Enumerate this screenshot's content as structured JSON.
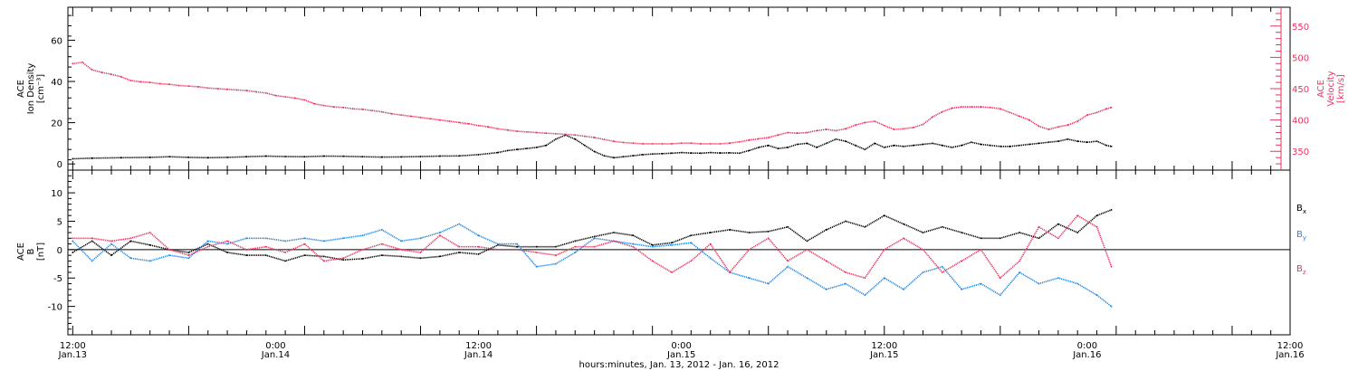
{
  "chart_data": [
    {
      "type": "line",
      "panel": "density_velocity",
      "ylabel_lines": [
        "ACE",
        "Ion Density",
        "[cm⁻³]"
      ],
      "y2label_lines": [
        "ACE",
        "Velocity",
        "[km/s]"
      ],
      "ylim": [
        -3,
        76
      ],
      "yticks": [
        0,
        20,
        40,
        60
      ],
      "y2lim": [
        320,
        580
      ],
      "y2ticks": [
        350,
        400,
        450,
        500,
        550
      ],
      "y2_color": "#e8345f",
      "series": [
        {
          "axis": "y",
          "color": "#000000",
          "x": [
            0,
            2,
            5,
            8,
            10,
            12,
            14,
            16,
            18,
            20,
            22,
            24,
            26,
            28,
            30,
            32,
            34,
            36,
            38,
            40,
            42,
            44,
            45,
            46,
            47,
            48,
            49,
            50,
            51,
            52,
            53,
            54,
            55,
            56,
            57,
            58,
            59,
            60,
            61,
            62,
            63,
            64,
            65,
            66,
            67,
            68,
            69,
            70,
            71,
            72,
            73,
            74,
            75,
            76,
            77,
            78,
            79,
            80,
            81,
            82,
            83,
            84,
            85,
            86,
            87,
            88,
            89,
            90,
            91,
            92,
            93,
            94,
            95,
            96,
            97,
            98,
            99,
            100,
            101,
            102,
            103,
            104,
            105,
            106,
            107,
            107.5
          ],
          "y": [
            2.5,
            2.8,
            3,
            3.2,
            3.5,
            3.2,
            3,
            3.2,
            3.5,
            3.8,
            3.6,
            3.5,
            3.8,
            3.7,
            3.5,
            3.3,
            3.4,
            3.6,
            3.8,
            3.9,
            4.5,
            5.5,
            6.5,
            7,
            7.5,
            8,
            9,
            12,
            14,
            12,
            9,
            6,
            4,
            3,
            3.5,
            4,
            4.5,
            4.8,
            5,
            5.2,
            5.5,
            5.3,
            5.2,
            5.5,
            5.3,
            5.4,
            5.2,
            6.5,
            8,
            9,
            7.5,
            8,
            9.5,
            10,
            8,
            10,
            12,
            11,
            9,
            7,
            10,
            8,
            9,
            8.5,
            9,
            9.5,
            10,
            9,
            8,
            9,
            10.5,
            9.5,
            9,
            8.5,
            8.5,
            9,
            9.5,
            10,
            10.5,
            11,
            12,
            11,
            10.5,
            11,
            9,
            8.5
          ]
        },
        {
          "axis": "y2",
          "color": "#e8345f",
          "x": [
            0,
            1,
            2,
            3,
            4,
            5,
            6,
            7,
            8,
            9,
            10,
            11,
            12,
            13,
            14,
            15,
            16,
            17,
            18,
            19,
            20,
            21,
            22,
            23,
            24,
            25,
            26,
            27,
            28,
            29,
            30,
            31,
            32,
            33,
            34,
            35,
            36,
            37,
            38,
            39,
            40,
            41,
            42,
            43,
            44,
            45,
            46,
            47,
            48,
            49,
            50,
            51,
            52,
            53,
            54,
            55,
            56,
            57,
            58,
            59,
            60,
            61,
            62,
            63,
            64,
            65,
            66,
            67,
            68,
            69,
            70,
            71,
            72,
            73,
            74,
            75,
            76,
            77,
            78,
            79,
            80,
            81,
            82,
            83,
            84,
            85,
            86,
            87,
            88,
            89,
            90,
            91,
            92,
            93,
            94,
            95,
            96,
            97,
            98,
            99,
            100,
            101,
            102,
            103,
            104,
            105,
            106,
            107,
            107.5
          ],
          "y": [
            490,
            492,
            480,
            476,
            473,
            469,
            463,
            461,
            460,
            458,
            457,
            455,
            454,
            453,
            451,
            450,
            449,
            448,
            447,
            445,
            443,
            439,
            437,
            435,
            432,
            426,
            423,
            421,
            420,
            418,
            417,
            415,
            413,
            410,
            408,
            406,
            404,
            402,
            400,
            398,
            396,
            394,
            391,
            389,
            386,
            384,
            382,
            381,
            380,
            379,
            378,
            377,
            376,
            374,
            372,
            369,
            366,
            364,
            363,
            362,
            362,
            362,
            362,
            363,
            363,
            362,
            362,
            362,
            363,
            365,
            368,
            370,
            372,
            376,
            380,
            379,
            380,
            383,
            385,
            383,
            386,
            392,
            396,
            398,
            391,
            385,
            386,
            388,
            393,
            405,
            413,
            419,
            421,
            421,
            421,
            420,
            418,
            412,
            406,
            400,
            390,
            385,
            389,
            392,
            398,
            408,
            412,
            418,
            420
          ]
        }
      ]
    },
    {
      "type": "line",
      "panel": "magnetic_field",
      "ylabel_lines": [
        "ACE",
        "B",
        "[nT]"
      ],
      "ylim": [
        -15,
        14
      ],
      "yticks": [
        -10,
        -5,
        0,
        5,
        10
      ],
      "series": [
        {
          "name": "Bx",
          "color": "#000000",
          "x": [
            0,
            2,
            4,
            6,
            8,
            10,
            12,
            14,
            16,
            18,
            20,
            22,
            24,
            26,
            28,
            30,
            32,
            34,
            36,
            38,
            40,
            42,
            44,
            46,
            48,
            50,
            52,
            54,
            56,
            58,
            60,
            62,
            64,
            66,
            68,
            70,
            72,
            74,
            76,
            78,
            80,
            82,
            84,
            86,
            88,
            90,
            92,
            94,
            96,
            98,
            100,
            102,
            104,
            106,
            107.5
          ],
          "y": [
            -0.5,
            1.5,
            -1,
            1.5,
            0.8,
            0,
            -0.5,
            1,
            -0.5,
            -1,
            -1,
            -2,
            -1,
            -1.2,
            -1.8,
            -1.6,
            -1,
            -1.2,
            -1.5,
            -1.2,
            -0.5,
            -0.8,
            0.8,
            0.5,
            0.5,
            0.5,
            1.5,
            2.3,
            3,
            2.5,
            0.8,
            1.2,
            2.5,
            3,
            3.5,
            3,
            3.2,
            4,
            1.5,
            3.5,
            5,
            4,
            6,
            4.5,
            3,
            4,
            3,
            2,
            2,
            3,
            2,
            4.5,
            3,
            6,
            7
          ]
        },
        {
          "name": "By",
          "color": "#1e88e5",
          "x": [
            0,
            2,
            4,
            6,
            8,
            10,
            12,
            14,
            16,
            18,
            20,
            22,
            24,
            26,
            28,
            30,
            32,
            34,
            36,
            38,
            40,
            42,
            44,
            46,
            48,
            50,
            52,
            54,
            56,
            58,
            60,
            62,
            64,
            66,
            68,
            70,
            72,
            74,
            76,
            78,
            80,
            82,
            84,
            86,
            88,
            90,
            92,
            94,
            96,
            98,
            100,
            102,
            104,
            106,
            107.5
          ],
          "y": [
            1.5,
            -2,
            1,
            -1.5,
            -2,
            -1,
            -1.5,
            1.5,
            1,
            2,
            2,
            1.5,
            2,
            1.5,
            2,
            2.5,
            3.5,
            1.5,
            2,
            3,
            4.5,
            2.5,
            1,
            1,
            -3,
            -2.5,
            -0.5,
            2,
            1.5,
            1,
            0.5,
            0.8,
            1.2,
            -1.5,
            -4,
            -5,
            -6,
            -3,
            -5,
            -7,
            -6,
            -8,
            -5,
            -7,
            -4,
            -3,
            -7,
            -6,
            -8,
            -4,
            -6,
            -5,
            -6,
            -8,
            -10
          ]
        },
        {
          "name": "Bz",
          "color": "#e8345f",
          "x": [
            0,
            2,
            4,
            6,
            8,
            10,
            12,
            14,
            16,
            18,
            20,
            22,
            24,
            26,
            28,
            30,
            32,
            34,
            36,
            38,
            40,
            42,
            44,
            46,
            48,
            50,
            52,
            54,
            56,
            58,
            60,
            62,
            64,
            66,
            68,
            70,
            72,
            74,
            76,
            78,
            80,
            82,
            84,
            86,
            88,
            90,
            92,
            94,
            96,
            98,
            100,
            102,
            104,
            106,
            107.5
          ],
          "y": [
            2,
            2,
            1.5,
            2,
            3,
            0,
            -1,
            0.5,
            1.5,
            0,
            0.5,
            -0.5,
            1,
            -2,
            -1.5,
            0,
            1,
            0,
            -0.5,
            2.5,
            0.5,
            0.5,
            0,
            0,
            -0.5,
            -1,
            0.5,
            0.5,
            1.5,
            0.5,
            -2,
            -4,
            -2,
            1,
            -4,
            0,
            2,
            -2,
            0,
            -2,
            -4,
            -5,
            0,
            2,
            0,
            -4,
            -2,
            0,
            -5,
            -2,
            4,
            2,
            6,
            4,
            -3
          ]
        }
      ],
      "legend": [
        "Bx",
        "By",
        "Bz"
      ]
    }
  ],
  "x_axis": {
    "range_hours": [
      -0.5,
      126
    ],
    "tick_times": [
      "12:00",
      "0:00",
      "12:00",
      "0:00",
      "12:00",
      "0:00",
      "12:00"
    ],
    "tick_dates": [
      "Jan.13",
      "Jan.14",
      "Jan.14",
      "Jan.15",
      "Jan.15",
      "Jan.16",
      "Jan.16"
    ],
    "tick_hours": [
      0,
      12,
      24,
      36,
      48,
      60,
      72
    ],
    "xlabel": "hours:minutes, Jan. 13, 2012 - Jan. 16, 2012"
  },
  "legend_labels": [
    "Bx",
    "By",
    "Bz"
  ]
}
